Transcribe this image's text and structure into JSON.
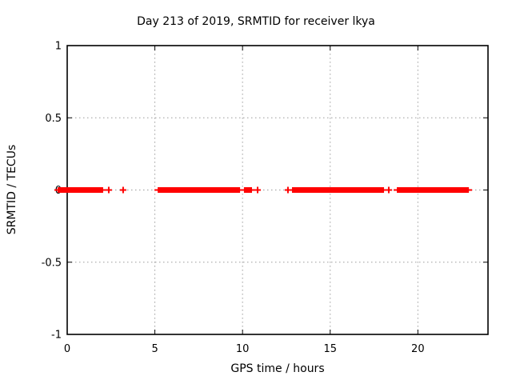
{
  "chart_data": {
    "type": "scatter",
    "title": "Day 213 of 2019, SRMTID for receiver lkya",
    "xlabel": "GPS time / hours",
    "ylabel": "SRMTID / TECUs",
    "xlim": [
      0,
      24
    ],
    "ylim": [
      -1,
      1
    ],
    "xticks": [
      0,
      5,
      10,
      15,
      20
    ],
    "xtick_labels": [
      "0",
      "5",
      "10",
      "15",
      "20"
    ],
    "yticks": [
      -1,
      -0.5,
      0,
      0.5,
      1
    ],
    "ytick_labels": [
      "-1",
      "-0.5",
      "0",
      "0.5",
      "1"
    ],
    "grid_x": [
      5,
      10,
      15,
      20
    ],
    "grid_y": [
      -0.5,
      0,
      0.5
    ],
    "grid": "on",
    "legend": "none",
    "marker": "plus",
    "series": [
      {
        "name": "SRMTID",
        "y_value": 0,
        "dense_bands_hours": [
          [
            -0.55,
            2.05
          ],
          [
            5.16,
            9.86
          ],
          [
            10.08,
            10.54
          ],
          [
            12.82,
            18.07
          ],
          [
            18.8,
            22.91
          ]
        ],
        "isolated_points_hours": [
          2.37,
          3.19,
          10.86,
          12.59,
          18.34
        ]
      }
    ],
    "colors": {
      "marker": "#ff0000",
      "grid": "#9b9b9b",
      "border": "#000000",
      "background": "#ffffff",
      "text": "#000000"
    }
  }
}
